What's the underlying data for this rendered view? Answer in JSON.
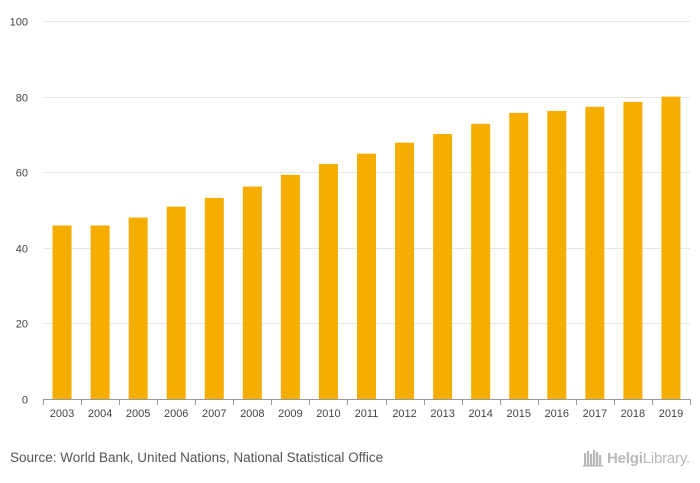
{
  "chart_data": {
    "type": "bar",
    "title": "",
    "xlabel": "",
    "ylabel": "",
    "categories": [
      "2003",
      "2004",
      "2005",
      "2006",
      "2007",
      "2008",
      "2009",
      "2010",
      "2011",
      "2012",
      "2013",
      "2014",
      "2015",
      "2016",
      "2017",
      "2018",
      "2019"
    ],
    "values": [
      45.9,
      45.9,
      48.0,
      50.9,
      53.2,
      56.2,
      59.3,
      62.2,
      64.9,
      67.8,
      70.1,
      72.8,
      75.7,
      76.2,
      77.3,
      78.6,
      80.0
    ],
    "ylim": [
      0,
      100
    ],
    "yticks": [
      0,
      20,
      40,
      60,
      80,
      100
    ],
    "grid": true,
    "bar_color": "#f5ae00",
    "grid_color": "#e6e6e6",
    "axis_color": "#999999",
    "tick_label_color": "#444444"
  },
  "footer": {
    "source": "Source: World Bank, United Nations, National Statistical Office",
    "logo_bold": "Helgi",
    "logo_rest": "Library."
  },
  "colors": {
    "source_text": "#555555",
    "logo": "#b8b8b8"
  }
}
